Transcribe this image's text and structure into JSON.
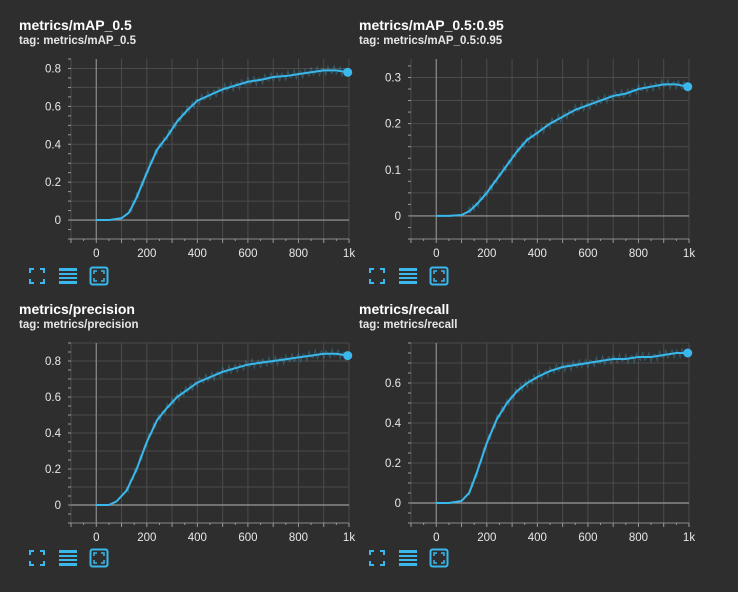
{
  "accent": "#3ab8ec",
  "charts": [
    {
      "title": "metrics/mAP_0.5",
      "tag": "tag: metrics/mAP_0.5",
      "chart_data": {
        "type": "line",
        "title": "metrics/mAP_0.5",
        "xlabel": "",
        "ylabel": "",
        "xlim": [
          -100,
          1000
        ],
        "ylim": [
          -0.1,
          0.85
        ],
        "yticks": [
          "0",
          "0.2",
          "0.4",
          "0.6",
          "0.8"
        ],
        "xticks": [
          "0",
          "200",
          "400",
          "600",
          "800",
          "1k"
        ],
        "x": [
          0,
          50,
          100,
          130,
          160,
          200,
          240,
          280,
          320,
          360,
          400,
          450,
          500,
          550,
          600,
          650,
          700,
          750,
          800,
          850,
          900,
          950,
          995
        ],
        "values": [
          0,
          0,
          0.01,
          0.04,
          0.12,
          0.25,
          0.37,
          0.44,
          0.52,
          0.58,
          0.63,
          0.66,
          0.69,
          0.71,
          0.73,
          0.74,
          0.755,
          0.76,
          0.77,
          0.78,
          0.79,
          0.79,
          0.78
        ]
      }
    },
    {
      "title": "metrics/mAP_0.5:0.95",
      "tag": "tag: metrics/mAP_0.5:0.95",
      "chart_data": {
        "type": "line",
        "title": "metrics/mAP_0.5:0.95",
        "xlabel": "",
        "ylabel": "",
        "xlim": [
          -100,
          1000
        ],
        "ylim": [
          -0.05,
          0.34
        ],
        "yticks": [
          "0",
          "0.1",
          "0.2",
          "0.3"
        ],
        "xticks": [
          "0",
          "200",
          "400",
          "600",
          "800",
          "1k"
        ],
        "x": [
          0,
          50,
          100,
          130,
          160,
          200,
          240,
          280,
          320,
          360,
          400,
          450,
          500,
          550,
          600,
          650,
          700,
          750,
          800,
          850,
          900,
          950,
          995
        ],
        "values": [
          0,
          0,
          0.002,
          0.01,
          0.025,
          0.05,
          0.08,
          0.11,
          0.14,
          0.165,
          0.18,
          0.2,
          0.215,
          0.23,
          0.24,
          0.25,
          0.26,
          0.265,
          0.275,
          0.28,
          0.285,
          0.285,
          0.28
        ]
      }
    },
    {
      "title": "metrics/precision",
      "tag": "tag: metrics/precision",
      "chart_data": {
        "type": "line",
        "title": "metrics/precision",
        "xlabel": "",
        "ylabel": "",
        "xlim": [
          -100,
          1000
        ],
        "ylim": [
          -0.1,
          0.9
        ],
        "yticks": [
          "0",
          "0.2",
          "0.4",
          "0.6",
          "0.8"
        ],
        "xticks": [
          "0",
          "200",
          "400",
          "600",
          "800",
          "1k"
        ],
        "x": [
          0,
          50,
          80,
          120,
          160,
          200,
          240,
          280,
          320,
          360,
          400,
          450,
          500,
          550,
          600,
          650,
          700,
          750,
          800,
          850,
          900,
          950,
          995
        ],
        "values": [
          0,
          0,
          0.02,
          0.08,
          0.2,
          0.35,
          0.47,
          0.54,
          0.6,
          0.64,
          0.68,
          0.71,
          0.74,
          0.76,
          0.78,
          0.79,
          0.8,
          0.81,
          0.82,
          0.83,
          0.84,
          0.84,
          0.83
        ]
      }
    },
    {
      "title": "metrics/recall",
      "tag": "tag: metrics/recall",
      "chart_data": {
        "type": "line",
        "title": "metrics/recall",
        "xlabel": "",
        "ylabel": "",
        "xlim": [
          -100,
          1000
        ],
        "ylim": [
          -0.1,
          0.8
        ],
        "yticks": [
          "0",
          "0.2",
          "0.4",
          "0.6"
        ],
        "xticks": [
          "0",
          "200",
          "400",
          "600",
          "800",
          "1k"
        ],
        "x": [
          0,
          50,
          100,
          130,
          160,
          200,
          240,
          280,
          320,
          360,
          400,
          450,
          500,
          550,
          600,
          650,
          700,
          750,
          800,
          850,
          900,
          950,
          995
        ],
        "values": [
          0,
          0,
          0.01,
          0.05,
          0.15,
          0.3,
          0.42,
          0.5,
          0.56,
          0.6,
          0.63,
          0.66,
          0.68,
          0.69,
          0.7,
          0.71,
          0.72,
          0.72,
          0.73,
          0.73,
          0.74,
          0.75,
          0.75
        ]
      }
    }
  ],
  "toolbar": {
    "icons": [
      "fullscreen-icon",
      "data-table-icon",
      "fit-domain-icon"
    ]
  }
}
